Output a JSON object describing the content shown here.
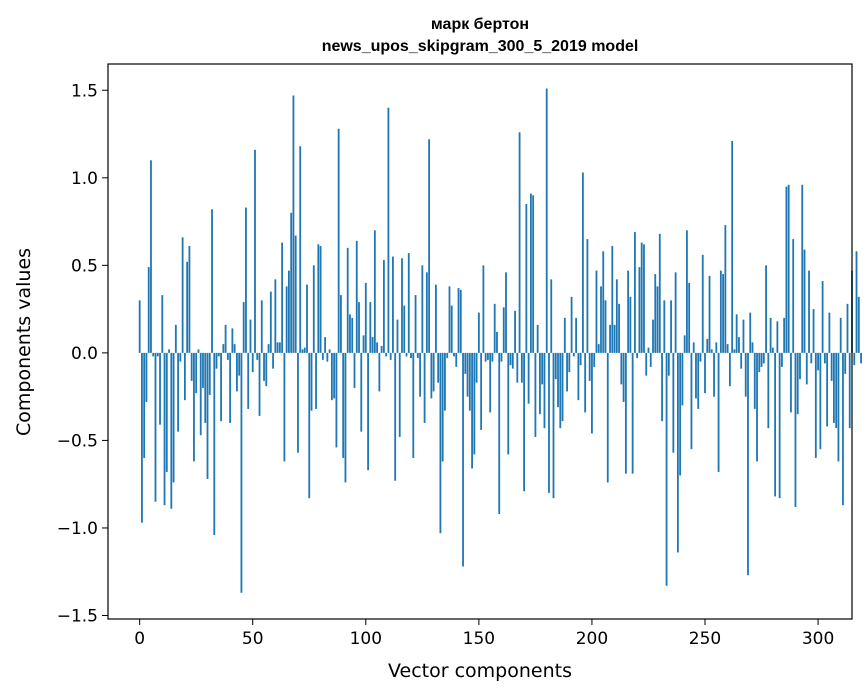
{
  "chart_data": {
    "type": "bar",
    "title_line1": "марк бертон",
    "title_line2": "news_upos_skipgram_300_5_2019 model",
    "xlabel": "Vector components",
    "ylabel": "Components values",
    "xlim": [
      -14,
      315
    ],
    "ylim": [
      -1.52,
      1.65
    ],
    "xticks": [
      0,
      50,
      100,
      150,
      200,
      250,
      300
    ],
    "xtick_labels": [
      "0",
      "50",
      "100",
      "150",
      "200",
      "250",
      "300"
    ],
    "yticks": [
      -1.5,
      -1.0,
      -0.5,
      0.0,
      0.5,
      1.0,
      1.5
    ],
    "ytick_labels": [
      "−1.5",
      "−1.0",
      "−0.5",
      "0.0",
      "0.5",
      "1.0",
      "1.5"
    ],
    "bar_color": "#1f77b4",
    "values": [
      0.3,
      -0.97,
      -0.6,
      -0.28,
      0.49,
      1.1,
      -0.02,
      -0.85,
      -0.02,
      -0.41,
      0.33,
      -0.87,
      -0.68,
      0.02,
      -0.89,
      -0.74,
      0.16,
      -0.45,
      -0.05,
      0.66,
      -0.27,
      0.52,
      0.61,
      -0.16,
      -0.62,
      -0.23,
      0.02,
      -0.47,
      -0.2,
      -0.4,
      -0.72,
      -0.24,
      0.82,
      -1.04,
      -0.09,
      -0.02,
      -0.39,
      0.05,
      0.16,
      -0.04,
      -0.4,
      0.14,
      0.05,
      -0.22,
      -0.13,
      -1.37,
      0.29,
      0.83,
      -0.32,
      0.19,
      -0.11,
      1.16,
      -0.04,
      -0.36,
      0.3,
      -0.16,
      -0.19,
      0.05,
      0.35,
      -0.09,
      0.42,
      0.06,
      0.06,
      0.63,
      -0.62,
      0.38,
      0.47,
      0.8,
      1.47,
      0.67,
      -0.57,
      1.18,
      0.02,
      0.03,
      0.39,
      -0.83,
      -0.33,
      0.5,
      -0.32,
      0.62,
      0.61,
      -0.04,
      0.09,
      -0.05,
      0.02,
      -0.27,
      -0.26,
      -0.54,
      1.28,
      0.33,
      -0.6,
      -0.74,
      0.6,
      0.22,
      0.2,
      -0.2,
      0.64,
      0.29,
      -0.45,
      0.1,
      0.4,
      -0.67,
      0.29,
      0.09,
      0.7,
      0.06,
      -0.22,
      0.04,
      0.53,
      -0.02,
      1.4,
      -0.04,
      0.55,
      -0.73,
      0.19,
      -0.48,
      0.54,
      0.27,
      -0.02,
      0.57,
      -0.03,
      -0.6,
      0.33,
      -0.03,
      -0.25,
      0.5,
      -0.4,
      0.46,
      1.22,
      -0.26,
      -0.22,
      0.39,
      -0.17,
      -1.03,
      -0.62,
      -0.33,
      -0.03,
      0.38,
      0.27,
      -0.02,
      -0.08,
      0.37,
      0.36,
      -1.22,
      -0.12,
      -0.25,
      -0.33,
      -0.66,
      -0.58,
      -0.17,
      0.23,
      -0.44,
      0.5,
      -0.05,
      -0.04,
      -0.34,
      -0.05,
      0.28,
      0.12,
      -0.92,
      -0.05,
      0.26,
      0.46,
      -0.58,
      -0.07,
      -0.09,
      0.24,
      -0.17,
      1.26,
      -0.17,
      -0.79,
      0.85,
      -0.29,
      0.91,
      0.9,
      -0.48,
      0.16,
      -0.35,
      -0.18,
      -0.43,
      1.51,
      -0.8,
      0.42,
      -0.83,
      -0.15,
      -0.31,
      -0.43,
      -0.39,
      0.2,
      -0.22,
      -0.11,
      0.32,
      -0.02,
      0.2,
      -0.27,
      -0.07,
      1.03,
      -0.34,
      0.65,
      -0.16,
      -0.46,
      -0.08,
      0.47,
      0.05,
      0.38,
      0.58,
      0.3,
      -0.74,
      0.16,
      0.61,
      0.16,
      0.42,
      0.28,
      -0.18,
      -0.28,
      -0.69,
      0.47,
      0.32,
      -0.69,
      0.69,
      -0.03,
      0.49,
      0.63,
      0.62,
      -0.13,
      0.03,
      -0.08,
      0.19,
      0.45,
      0.38,
      0.68,
      -0.39,
      0.3,
      -1.33,
      -0.13,
      0.3,
      -0.57,
      0.46,
      -1.14,
      -0.7,
      -0.3,
      0.1,
      0.7,
      0.4,
      -0.55,
      0.06,
      -0.26,
      -0.32,
      -0.05,
      0.56,
      -0.23,
      0.08,
      0.44,
      0.02,
      -0.25,
      0.06,
      -0.68,
      0.47,
      0.45,
      0.73,
      0.05,
      -0.19,
      1.21,
      0.02,
      0.22,
      0.09,
      -0.09,
      0.19,
      -0.25,
      -1.27,
      0.23,
      0.06,
      -0.32,
      -0.62,
      -0.11,
      -0.08,
      -0.06,
      0.5,
      -0.43,
      0.2,
      0.03,
      -0.82,
      0.18,
      -0.83,
      -0.08,
      0.2,
      0.95,
      0.96,
      -0.34,
      0.65,
      -0.88,
      -0.35,
      -0.15,
      0.96,
      0.59,
      -0.18,
      0.47,
      -0.06,
      0.25,
      -0.6,
      -0.1,
      -0.55,
      0.41,
      -0.06,
      -0.42,
      0.23,
      -0.16,
      -0.4,
      -0.43,
      -0.62,
      0.2,
      -0.87,
      -0.12,
      0.28,
      -0.43,
      0.47,
      -0.07,
      0.58,
      0.32,
      -0.06
    ]
  }
}
